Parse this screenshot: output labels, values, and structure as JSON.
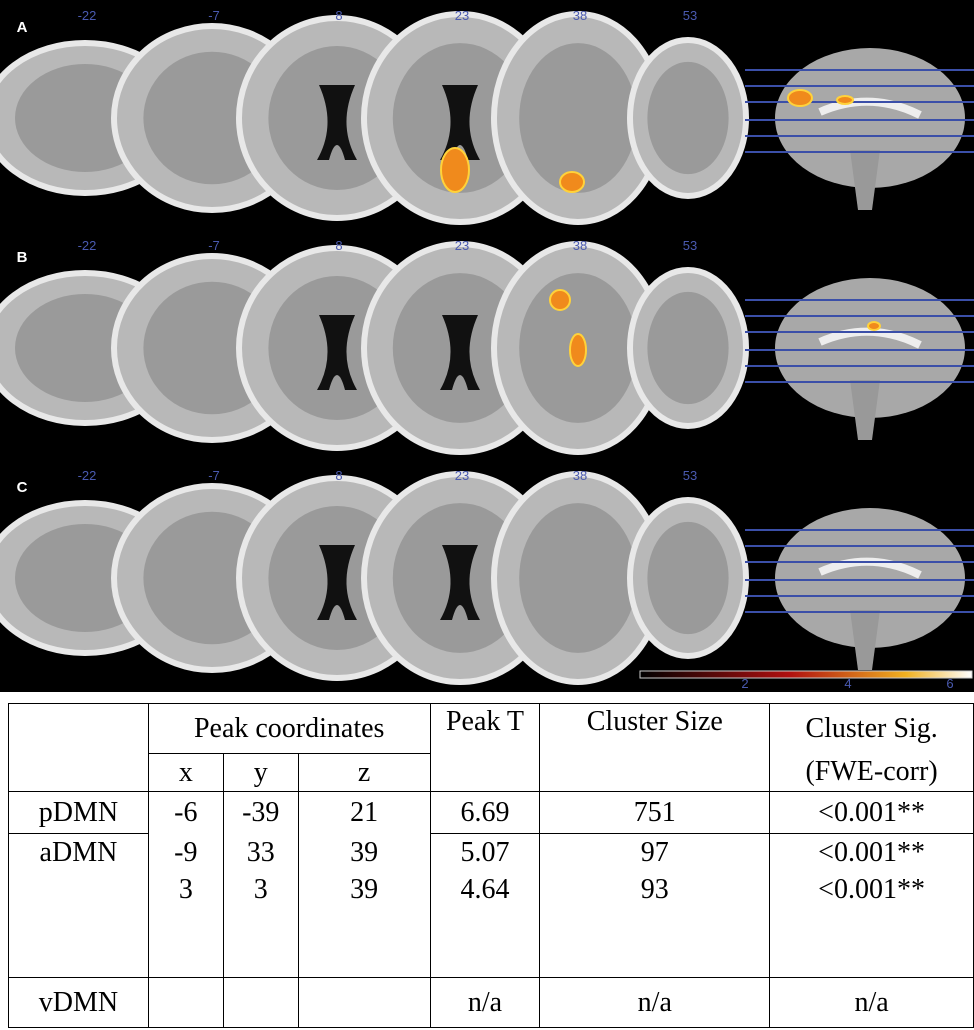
{
  "figure": {
    "panels": [
      {
        "label": "A",
        "slices": [
          "-22",
          "-7",
          "8",
          "23",
          "38",
          "53"
        ]
      },
      {
        "label": "B",
        "slices": [
          "-22",
          "-7",
          "8",
          "23",
          "38",
          "53"
        ]
      },
      {
        "label": "C",
        "slices": [
          "-22",
          "-7",
          "8",
          "23",
          "38",
          "53"
        ]
      }
    ],
    "colorbar_labels": [
      "2",
      "4",
      "6"
    ]
  },
  "table": {
    "header": {
      "label_col": null,
      "coords": "Peak coordinates",
      "peak_t": "Peak T",
      "cluster_size": "Cluster Size",
      "cluster_sig": "Cluster Sig.",
      "cluster_sig_2": "(FWE-corr)",
      "x": "x",
      "y": "y",
      "z": "z"
    },
    "rows": [
      {
        "label": "pDMN",
        "x": "-6",
        "y": "-39",
        "z": "21",
        "peak_t": "6.69",
        "size": "751",
        "sig": "<0.001**"
      },
      {
        "label": "aDMN",
        "x": "-9",
        "y": "33",
        "z": "39",
        "peak_t": "5.07",
        "size": "97",
        "sig": "<0.001**"
      },
      {
        "x": "3",
        "y": "3",
        "z": "39",
        "peak_t": "4.64",
        "size": "93",
        "sig": "<0.001**"
      },
      {
        "label": "vDMN",
        "peak_t": "n/a",
        "size": "n/a",
        "sig": "n/a"
      }
    ]
  }
}
